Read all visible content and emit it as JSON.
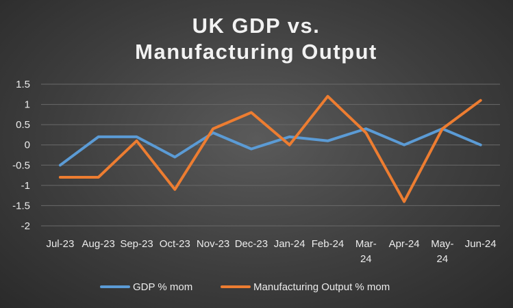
{
  "chart_data": {
    "type": "line",
    "title_lines": [
      "UK GDP vs.",
      "Manufacturing Output"
    ],
    "categories": [
      "Jul-23",
      "Aug-23",
      "Sep-23",
      "Oct-23",
      "Nov-23",
      "Dec-23",
      "Jan-24",
      "Feb-24",
      "Mar-24",
      "Apr-24",
      "May-24",
      "Jun-24"
    ],
    "category_label_lines": [
      [
        "Jul-23"
      ],
      [
        "Aug-23"
      ],
      [
        "Sep-23"
      ],
      [
        "Oct-23"
      ],
      [
        "Nov-23"
      ],
      [
        "Dec-23"
      ],
      [
        "Jan-24"
      ],
      [
        "Feb-24"
      ],
      [
        "Mar-",
        "24"
      ],
      [
        "Apr-24"
      ],
      [
        "May-",
        "24"
      ],
      [
        "Jun-24"
      ]
    ],
    "series": [
      {
        "name": "GDP % mom",
        "color": "#5b9bd5",
        "values": [
          -0.5,
          0.2,
          0.2,
          -0.3,
          0.3,
          -0.1,
          0.2,
          0.1,
          0.4,
          0.0,
          0.4,
          0.0
        ]
      },
      {
        "name": "Manufacturing Output % mom",
        "color": "#ed7d31",
        "values": [
          -0.8,
          -0.8,
          0.1,
          -1.1,
          0.4,
          0.8,
          0.0,
          1.2,
          0.3,
          -1.4,
          0.4,
          1.1
        ]
      }
    ],
    "ylim": [
      -2,
      1.5
    ],
    "yticks": [
      "1.5",
      "1",
      "0.5",
      "0",
      "-0.5",
      "-1",
      "-1.5",
      "-2"
    ],
    "grid": true,
    "legend_position": "bottom"
  }
}
